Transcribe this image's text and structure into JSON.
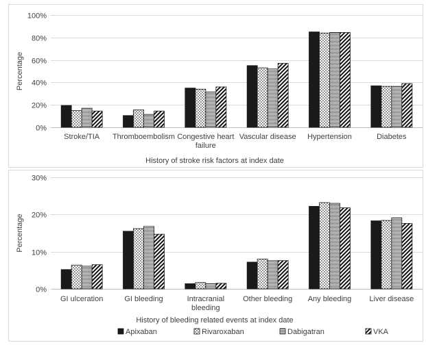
{
  "legend": [
    {
      "name": "Apixaban",
      "fill": "solid",
      "color": "#1a1a1a"
    },
    {
      "name": "Rivaroxaban",
      "fill": "dots",
      "color": "#ffffff"
    },
    {
      "name": "Dabigatran",
      "fill": "hlines",
      "color": "#8c8c8c"
    },
    {
      "name": "VKA",
      "fill": "diag",
      "color": "#ffffff"
    }
  ],
  "chart_data": [
    {
      "type": "bar",
      "title": "",
      "xlabel": "History of stroke risk factors at index date",
      "ylabel": "Percentage",
      "ylim": [
        0,
        100
      ],
      "yticks": [
        "0%",
        "20%",
        "40%",
        "60%",
        "80%",
        "100%"
      ],
      "grid": true,
      "categories": [
        [
          "Stroke/TIA"
        ],
        [
          "Thromboembolism"
        ],
        [
          "Congestive heart",
          "failure"
        ],
        [
          "Vascular disease"
        ],
        [
          "Hypertension"
        ],
        [
          "Diabetes"
        ]
      ],
      "series": [
        {
          "name": "Apixaban",
          "values": [
            19.5,
            10.5,
            35,
            55,
            85,
            37
          ]
        },
        {
          "name": "Rivaroxaban",
          "values": [
            15,
            15.5,
            34,
            53,
            84,
            36.5
          ]
        },
        {
          "name": "Dabigatran",
          "values": [
            17,
            11.5,
            31.5,
            52,
            84.5,
            36.5
          ]
        },
        {
          "name": "VKA",
          "values": [
            14.5,
            14.5,
            36,
            57,
            84.5,
            39
          ]
        }
      ]
    },
    {
      "type": "bar",
      "title": "",
      "xlabel": "History of bleeding related events at index date",
      "ylabel": "Percentage",
      "ylim": [
        0,
        30
      ],
      "yticks": [
        "0%",
        "10%",
        "20%",
        "30%"
      ],
      "grid": true,
      "categories": [
        [
          "GI ulceration"
        ],
        [
          "GI bleeding"
        ],
        [
          "Intracranial",
          "bleeding"
        ],
        [
          "Other bleeding"
        ],
        [
          "Any bleeding"
        ],
        [
          "Liver disease"
        ]
      ],
      "series": [
        {
          "name": "Apixaban",
          "values": [
            5.2,
            15.5,
            1.4,
            7.2,
            22.2,
            18.3
          ]
        },
        {
          "name": "Rivaroxaban",
          "values": [
            6.4,
            16.2,
            1.7,
            8.0,
            23.2,
            18.4
          ]
        },
        {
          "name": "Dabigatran",
          "values": [
            6.1,
            16.8,
            1.4,
            7.6,
            23.0,
            19.1
          ]
        },
        {
          "name": "VKA",
          "values": [
            6.5,
            14.7,
            1.5,
            7.6,
            21.8,
            17.6
          ]
        }
      ]
    }
  ]
}
